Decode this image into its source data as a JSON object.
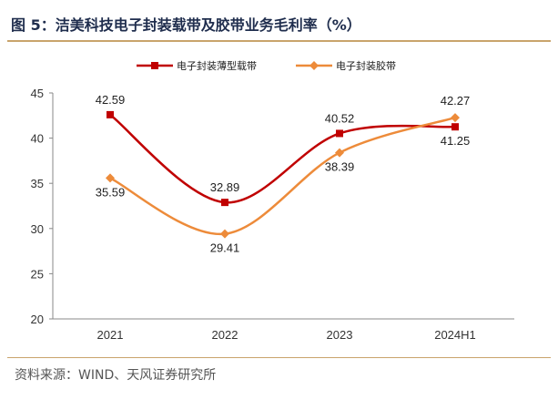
{
  "header": {
    "title": "图 5：洁美科技电子封装载带及胶带业务毛利率（%）"
  },
  "footer": {
    "source": "资料来源：WIND、天风证券研究所"
  },
  "chart_data": {
    "type": "line",
    "categories": [
      "2021",
      "2022",
      "2023",
      "2024H1"
    ],
    "series": [
      {
        "name": "电子封装薄型载带",
        "values": [
          42.59,
          32.89,
          40.52,
          41.25
        ],
        "labels": [
          "42.59",
          "32.89",
          "40.52",
          "41.25"
        ],
        "color": "#c00000",
        "marker": "square"
      },
      {
        "name": "电子封装胶带",
        "values": [
          35.59,
          29.41,
          38.39,
          42.27
        ],
        "labels": [
          "35.59",
          "29.41",
          "38.39",
          "42.27"
        ],
        "color": "#ed8b3a",
        "marker": "diamond"
      }
    ],
    "yticks": [
      "20",
      "25",
      "30",
      "35",
      "40",
      "45"
    ],
    "ylim": [
      20,
      45
    ],
    "xlabel": "",
    "ylabel": "",
    "grid": false,
    "legend_position": "top"
  }
}
